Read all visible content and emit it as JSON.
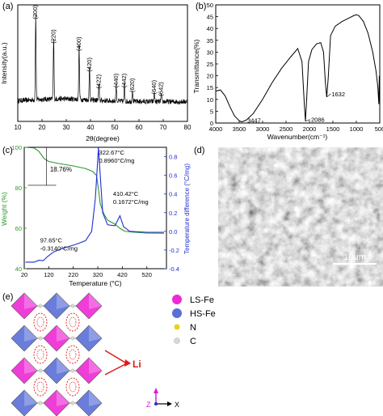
{
  "panels": {
    "a": {
      "label": "(a)"
    },
    "b": {
      "label": "(b)"
    },
    "c": {
      "label": "(c)"
    },
    "d": {
      "label": "(d)"
    },
    "e": {
      "label": "(e)"
    }
  },
  "chart_data": [
    {
      "panel": "a",
      "type": "line",
      "xlabel": "2θ(degree)",
      "ylabel": "Intensity(a.u.)",
      "xlim": [
        10,
        80
      ],
      "xticks": [
        10,
        20,
        30,
        40,
        50,
        60,
        70,
        80
      ],
      "series_color": "#000000",
      "peaks": [
        {
          "x": 17.4,
          "label": "(200)"
        },
        {
          "x": 24.8,
          "label": "(220)"
        },
        {
          "x": 35.3,
          "label": "(400)"
        },
        {
          "x": 39.6,
          "label": "(420)"
        },
        {
          "x": 43.5,
          "label": "(422)"
        },
        {
          "x": 50.6,
          "label": "(440)"
        },
        {
          "x": 54.0,
          "label": "(442)"
        },
        {
          "x": 57.3,
          "label": "(620)"
        },
        {
          "x": 66.3,
          "label": "(640)"
        },
        {
          "x": 69.2,
          "label": "(642)"
        }
      ]
    },
    {
      "panel": "b",
      "type": "line",
      "xlabel": "Wavenumber(cm⁻¹)",
      "ylabel": "Transmittance(%)",
      "xlim": [
        4000,
        500
      ],
      "ylim": [
        0,
        50
      ],
      "xticks": [
        4000,
        3500,
        3000,
        2500,
        2000,
        1500,
        1000,
        500
      ],
      "yticks": [
        0,
        5,
        10,
        15,
        20,
        25,
        30,
        35,
        40,
        45,
        50
      ],
      "series_color": "#000000",
      "annotations": [
        {
          "x": 3447,
          "label": "3447"
        },
        {
          "x": 2086,
          "label": "2086"
        },
        {
          "x": 1632,
          "label": "1632"
        }
      ]
    },
    {
      "panel": "c",
      "type": "line",
      "xlabel": "Temperature (°C)",
      "ylabel_left": "Weight (%)",
      "ylabel_right": "Temperature difference (°C/mg)",
      "xlim": [
        20,
        600
      ],
      "xticks": [
        20,
        120,
        220,
        320,
        420,
        520
      ],
      "ylim_left": [
        40,
        100
      ],
      "yticks_left": [
        40,
        60,
        80,
        100
      ],
      "ylim_right": [
        -0.4,
        0.9
      ],
      "yticks_right": [
        -0.4,
        -0.2,
        0.0,
        0.2,
        0.4,
        0.6,
        0.8
      ],
      "series": [
        {
          "name": "Weight",
          "axis": "left",
          "color": "#2a9a2a"
        },
        {
          "name": "Temperature difference",
          "axis": "right",
          "color": "#1f2fd0"
        }
      ],
      "annotations": [
        {
          "text": "18.76%"
        },
        {
          "text1": "322.67°C",
          "text2": "0.8960°C/mg"
        },
        {
          "text1": "410.42°C",
          "text2": "0.1672°C/mg"
        },
        {
          "text1": "97.65°C",
          "text2": "-0.3140°C/mg"
        }
      ]
    }
  ],
  "sem": {
    "scale_label": "10μm"
  },
  "structure": {
    "legend": [
      {
        "label": "LS-Fe",
        "color": "#ee2ad4"
      },
      {
        "label": "HS-Fe",
        "color": "#5a6fd8"
      },
      {
        "label": "N",
        "color": "#e6d21e"
      },
      {
        "label": "C",
        "color": "#d8d8d8"
      }
    ],
    "li_label": "Li",
    "axis_z": "Z",
    "axis_x": "X"
  }
}
